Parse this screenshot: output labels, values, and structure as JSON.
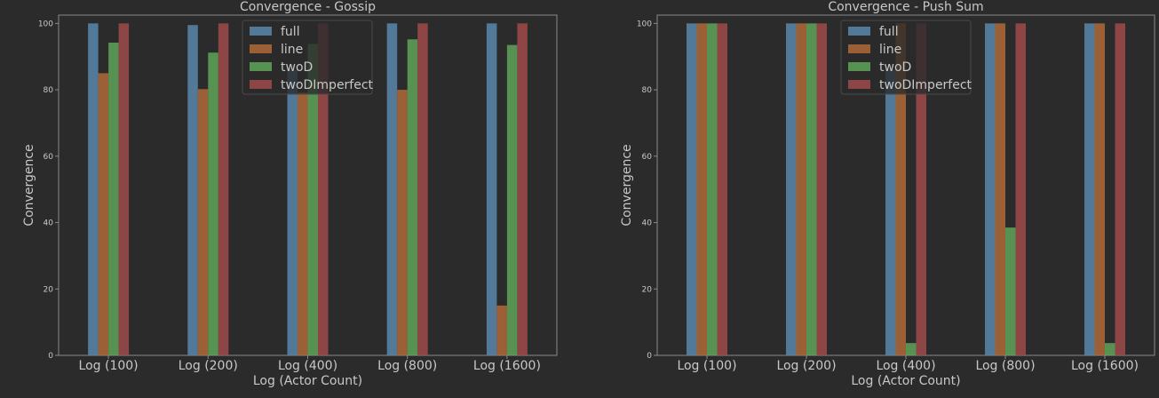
{
  "chart_data": [
    {
      "type": "bar",
      "title": "Convergence - Gossip",
      "xlabel": "Log (Actor Count)",
      "ylabel": "Convergence",
      "categories": [
        "Log (100)",
        "Log (200)",
        "Log (400)",
        "Log (800)",
        "Log (1600)"
      ],
      "ylim": [
        0,
        102.5
      ],
      "yticks": [
        "0",
        "20",
        "40",
        "60",
        "80",
        "100"
      ],
      "legend_position": "top-center",
      "grid": false,
      "series": [
        {
          "name": "full",
          "color": "#5a87ad",
          "values": [
            100,
            99.5,
            86,
            100,
            100
          ]
        },
        {
          "name": "line",
          "color": "#b06a38",
          "values": [
            85,
            80.2,
            79.2,
            80,
            15
          ]
        },
        {
          "name": "twoD",
          "color": "#5fa55a",
          "values": [
            94.2,
            91.2,
            93.8,
            95.2,
            93.5
          ]
        },
        {
          "name": "twoDImperfect",
          "color": "#a04a4b",
          "values": [
            100,
            100,
            100,
            100,
            100
          ]
        }
      ]
    },
    {
      "type": "bar",
      "title": "Convergence - Push Sum",
      "xlabel": "Log (Actor Count)",
      "ylabel": "Convergence",
      "categories": [
        "Log (100)",
        "Log (200)",
        "Log (400)",
        "Log (800)",
        "Log (1600)"
      ],
      "ylim": [
        0,
        102.5
      ],
      "yticks": [
        "0",
        "20",
        "40",
        "60",
        "80",
        "100"
      ],
      "legend_position": "top-center",
      "grid": false,
      "series": [
        {
          "name": "full",
          "color": "#5a87ad",
          "values": [
            100,
            100,
            86,
            100,
            100
          ]
        },
        {
          "name": "line",
          "color": "#b06a38",
          "values": [
            100,
            100,
            100,
            100,
            100
          ]
        },
        {
          "name": "twoD",
          "color": "#5fa55a",
          "values": [
            100,
            100,
            3.7,
            38.5,
            3.7
          ]
        },
        {
          "name": "twoDImperfect",
          "color": "#a04a4b",
          "values": [
            100,
            100,
            100,
            100,
            100
          ]
        }
      ]
    }
  ]
}
